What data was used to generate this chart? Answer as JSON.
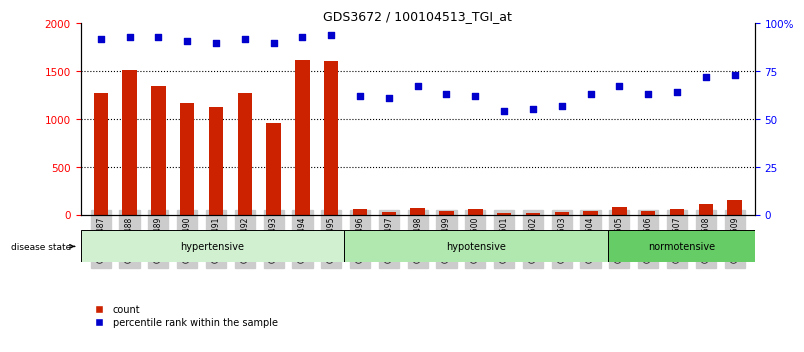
{
  "title": "GDS3672 / 100104513_TGI_at",
  "samples": [
    "GSM493487",
    "GSM493488",
    "GSM493489",
    "GSM493490",
    "GSM493491",
    "GSM493492",
    "GSM493493",
    "GSM493494",
    "GSM493495",
    "GSM493496",
    "GSM493497",
    "GSM493498",
    "GSM493499",
    "GSM493500",
    "GSM493501",
    "GSM493502",
    "GSM493503",
    "GSM493504",
    "GSM493505",
    "GSM493506",
    "GSM493507",
    "GSM493508",
    "GSM493509"
  ],
  "counts": [
    1270,
    1510,
    1340,
    1165,
    1130,
    1270,
    960,
    1620,
    1610,
    55,
    30,
    70,
    40,
    55,
    20,
    15,
    30,
    40,
    80,
    40,
    60,
    110,
    150
  ],
  "percentile": [
    92,
    93,
    93,
    91,
    90,
    92,
    90,
    93,
    94,
    62,
    61,
    67,
    63,
    62,
    54,
    55,
    57,
    63,
    67,
    63,
    64,
    72,
    73
  ],
  "groups": [
    {
      "label": "hypertensive",
      "start": 0,
      "end": 9,
      "color": "#d0f0d0"
    },
    {
      "label": "hypotensive",
      "start": 9,
      "end": 18,
      "color": "#b0e8b0"
    },
    {
      "label": "normotensive",
      "start": 18,
      "end": 23,
      "color": "#66cc66"
    }
  ],
  "bar_color": "#cc2200",
  "dot_color": "#0000cc",
  "ylim_left": [
    0,
    2000
  ],
  "yticks_left": [
    0,
    500,
    1000,
    1500,
    2000
  ],
  "yticks_right": [
    0,
    25,
    50,
    75,
    100
  ],
  "ytick_labels_right": [
    "0",
    "25",
    "50",
    "75",
    "100%"
  ],
  "grid_lines": [
    500,
    1000,
    1500
  ],
  "legend_items": [
    "count",
    "percentile rank within the sample"
  ]
}
